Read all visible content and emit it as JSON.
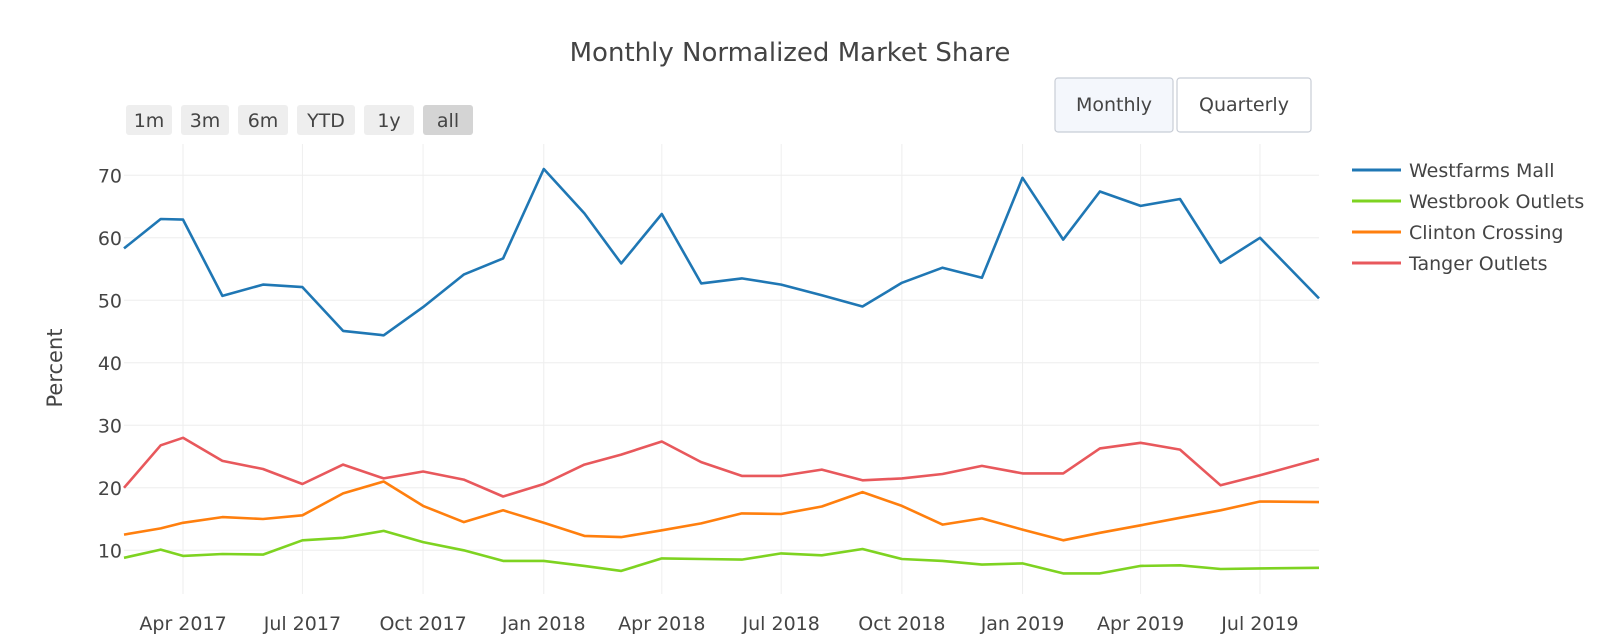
{
  "range_buttons": [
    {
      "label": "1m",
      "active": false
    },
    {
      "label": "3m",
      "active": false
    },
    {
      "label": "6m",
      "active": false
    },
    {
      "label": "YTD",
      "active": false
    },
    {
      "label": "1y",
      "active": false
    },
    {
      "label": "all",
      "active": true
    }
  ],
  "view_buttons": [
    {
      "label": "Monthly",
      "active": true
    },
    {
      "label": "Quarterly",
      "active": false
    }
  ],
  "chart_data": {
    "type": "line",
    "title": "Monthly Normalized Market Share",
    "ylabel": "Percent",
    "xlabel": "",
    "x_start": "2017-02-15",
    "x_end": "2019-08-15",
    "ylim": [
      3,
      75
    ],
    "y_ticks": [
      10,
      20,
      30,
      40,
      50,
      60,
      70
    ],
    "x_ticks": [
      {
        "date": "2017-04-01",
        "label": "Apr 2017"
      },
      {
        "date": "2017-07-01",
        "label": "Jul 2017"
      },
      {
        "date": "2017-10-01",
        "label": "Oct 2017"
      },
      {
        "date": "2018-01-01",
        "label": "Jan 2018"
      },
      {
        "date": "2018-04-01",
        "label": "Apr 2018"
      },
      {
        "date": "2018-07-01",
        "label": "Jul 2018"
      },
      {
        "date": "2018-10-01",
        "label": "Oct 2018"
      },
      {
        "date": "2019-01-01",
        "label": "Jan 2019"
      },
      {
        "date": "2019-04-01",
        "label": "Apr 2019"
      },
      {
        "date": "2019-07-01",
        "label": "Jul 2019"
      }
    ],
    "x": [
      "2017-02-15",
      "2017-03-15",
      "2017-04-01",
      "2017-05-01",
      "2017-06-01",
      "2017-07-01",
      "2017-08-01",
      "2017-09-01",
      "2017-10-01",
      "2017-11-01",
      "2017-12-01",
      "2018-01-01",
      "2018-02-01",
      "2018-03-01",
      "2018-04-01",
      "2018-05-01",
      "2018-06-01",
      "2018-07-01",
      "2018-08-01",
      "2018-09-01",
      "2018-10-01",
      "2018-11-01",
      "2018-12-01",
      "2019-01-01",
      "2019-02-01",
      "2019-03-01",
      "2019-04-01",
      "2019-05-01",
      "2019-06-01",
      "2019-07-01",
      "2019-08-15"
    ],
    "series": [
      {
        "name": "Westfarms Mall",
        "color": "#1f77b4",
        "values": [
          58.3,
          63.0,
          62.9,
          50.7,
          52.5,
          52.1,
          45.1,
          44.4,
          48.9,
          54.1,
          56.7,
          71.0,
          63.9,
          55.9,
          63.8,
          52.7,
          53.5,
          52.5,
          50.8,
          49.0,
          52.8,
          55.2,
          53.6,
          69.6,
          59.7,
          67.4,
          65.1,
          66.2,
          56.0,
          60.0,
          50.3
        ]
      },
      {
        "name": "Westbrook Outlets",
        "color": "#7ed321",
        "values": [
          8.8,
          10.1,
          9.1,
          9.4,
          9.3,
          11.6,
          12.0,
          13.1,
          11.3,
          10.0,
          8.3,
          8.3,
          7.5,
          6.7,
          8.7,
          8.6,
          8.5,
          9.5,
          9.2,
          10.2,
          8.6,
          8.3,
          7.7,
          7.9,
          6.3,
          6.3,
          7.5,
          7.6,
          7.0,
          7.1,
          7.2
        ]
      },
      {
        "name": "Clinton Crossing",
        "color": "#ff7f0e",
        "values": [
          12.5,
          13.5,
          14.4,
          15.3,
          15.0,
          15.6,
          19.1,
          21.0,
          17.1,
          14.5,
          16.4,
          14.4,
          12.3,
          12.1,
          13.2,
          14.3,
          15.9,
          15.8,
          17.0,
          19.3,
          17.1,
          14.1,
          15.1,
          13.3,
          11.6,
          12.8,
          14.0,
          15.2,
          16.4,
          17.8,
          17.7
        ]
      },
      {
        "name": "Tanger Outlets",
        "color": "#e8585c",
        "values": [
          20.0,
          26.8,
          28.0,
          24.3,
          23.0,
          20.6,
          23.7,
          21.5,
          22.6,
          21.3,
          18.6,
          20.6,
          23.7,
          25.3,
          27.4,
          24.1,
          21.9,
          21.9,
          22.9,
          21.2,
          21.5,
          22.2,
          23.5,
          22.3,
          22.3,
          26.3,
          27.2,
          26.1,
          20.4,
          22.0,
          24.6
        ]
      }
    ]
  }
}
